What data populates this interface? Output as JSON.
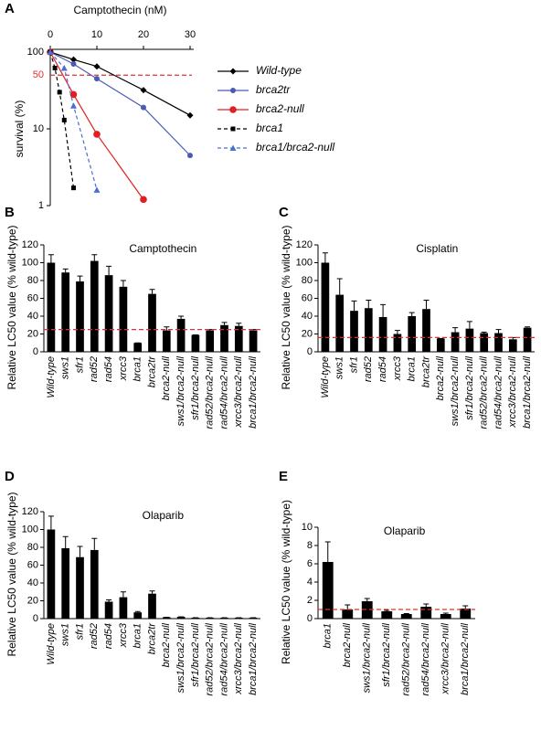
{
  "chart_data": [
    {
      "type": "line",
      "panel": "A",
      "x_label": "Camptothecin (nM)",
      "y_label": "survival (%)",
      "xlim": [
        0,
        30
      ],
      "xticks": [
        0,
        10,
        20,
        30
      ],
      "ylim": [
        1,
        100
      ],
      "yticks": [
        1,
        10,
        100
      ],
      "log_y": true,
      "ref_line": 50,
      "ref_color": "#e03030",
      "series": [
        {
          "name": "Wild-type",
          "color": "#000000",
          "marker": "diamond",
          "dashed": false,
          "x": [
            0,
            5,
            10,
            20,
            30
          ],
          "values": [
            100,
            80,
            65,
            32,
            15
          ]
        },
        {
          "name": "brca2tr",
          "color": "#4a5bb5",
          "marker": "circle",
          "dashed": false,
          "x": [
            0,
            5,
            10,
            20,
            30
          ],
          "values": [
            100,
            70,
            45,
            19,
            4.5
          ]
        },
        {
          "name": "brca2-null",
          "color": "#e02020",
          "marker": "bigcircle",
          "dashed": false,
          "x": [
            0,
            5,
            10,
            20
          ],
          "values": [
            100,
            28,
            8.5,
            1.2
          ]
        },
        {
          "name": "brca1",
          "color": "#000000",
          "marker": "square",
          "dashed": true,
          "x": [
            0,
            1,
            2,
            3,
            5
          ],
          "values": [
            100,
            62,
            30,
            13,
            1.7
          ]
        },
        {
          "name": "brca1/brca2-null",
          "color": "#4a6fd0",
          "marker": "triangle",
          "dashed": true,
          "x": [
            0,
            3,
            5,
            10
          ],
          "values": [
            100,
            62,
            20,
            1.6
          ]
        }
      ]
    },
    {
      "type": "bar",
      "panel": "B",
      "title": "Camptothecin",
      "y_label": "Relative LC50 value (% wild-type)",
      "categories": [
        "Wild-type",
        "sws1",
        "sfr1",
        "rad52",
        "rad54",
        "xrcc3",
        "brca1",
        "brca2tr",
        "brca2-null",
        "sws1/brca2-null",
        "sfr1/brca2-null",
        "rad52/brca2-null",
        "rad54/brca2-null",
        "xrcc3/brca2-null",
        "brca1/brca2-null"
      ],
      "values": [
        100,
        89,
        79,
        102,
        86,
        73,
        10,
        65,
        24,
        37,
        19,
        24,
        30,
        29,
        24
      ],
      "errors": [
        9,
        4,
        6,
        7,
        10,
        7,
        0,
        5,
        4,
        3,
        0,
        1,
        3,
        3,
        1
      ],
      "color": "#000000",
      "ylim": [
        0,
        120
      ],
      "yticks": [
        0,
        20,
        40,
        60,
        80,
        100,
        120
      ],
      "ref_line": 25,
      "ref_color": "#e03030"
    },
    {
      "type": "bar",
      "panel": "C",
      "title": "Cisplatin",
      "y_label": "Relative LC50 value (% wild-type)",
      "categories": [
        "Wild-type",
        "sws1",
        "sfr1",
        "rad52",
        "rad54",
        "xrcc3",
        "brca1",
        "brca2tr",
        "brca2-null",
        "sws1/brca2-null",
        "sfr1/brca2-null",
        "rad52/brca2-null",
        "rad54/brca2-null",
        "xrcc3/brca2-null",
        "brca1/brca2-null"
      ],
      "values": [
        100,
        64,
        46,
        49,
        39,
        20,
        40,
        48,
        15,
        22,
        26,
        21,
        21,
        14,
        27
      ],
      "errors": [
        11,
        18,
        11,
        9,
        14,
        4,
        4,
        10,
        0,
        5,
        8,
        1,
        4,
        2,
        1
      ],
      "color": "#000000",
      "ylim": [
        0,
        120
      ],
      "yticks": [
        0,
        20,
        40,
        60,
        80,
        100,
        120
      ],
      "ref_line": 16,
      "ref_color": "#e03030"
    },
    {
      "type": "bar",
      "panel": "D",
      "title": "Olaparib",
      "y_label": "Relative LC50 value (% wild-type)",
      "categories": [
        "Wild-type",
        "sws1",
        "sfr1",
        "rad52",
        "rad54",
        "xrcc3",
        "brca1",
        "brca2tr",
        "brca2-null",
        "sws1/brca2-null",
        "sfr1/brca2-null",
        "rad52/brca2-null",
        "rad54/brca2-null",
        "xrcc3/brca2-null",
        "brca1/brca2-null"
      ],
      "values": [
        100,
        79,
        69,
        77,
        19,
        24,
        7,
        28,
        1.5,
        2,
        1,
        1,
        1,
        1,
        1
      ],
      "errors": [
        15,
        13,
        12,
        13,
        2,
        6,
        1,
        3,
        0,
        0,
        0,
        0,
        0,
        0,
        0
      ],
      "color": "#000000",
      "ylim": [
        0,
        120
      ],
      "yticks": [
        0,
        20,
        40,
        60,
        80,
        100,
        120
      ]
    },
    {
      "type": "bar",
      "panel": "E",
      "title": "Olaparib",
      "y_label": "Relative LC50 value (% wild-type)",
      "categories": [
        "brca1",
        "brca2-null",
        "sws1/brca2-null",
        "sfr1/brca2-null",
        "rad52/brca2-null",
        "rad54/brca2-null",
        "xrcc3/brca2-null",
        "brca1/brca2-null"
      ],
      "values": [
        6.2,
        1.0,
        1.9,
        0.8,
        0.5,
        1.3,
        0.5,
        1.1
      ],
      "errors": [
        2.2,
        0.5,
        0.3,
        0.1,
        0.05,
        0.3,
        0.1,
        0.3
      ],
      "color": "#000000",
      "ylim": [
        0,
        10
      ],
      "yticks": [
        0,
        2,
        4,
        6,
        8,
        10
      ],
      "ref_line": 1,
      "ref_color": "#e03030"
    }
  ]
}
